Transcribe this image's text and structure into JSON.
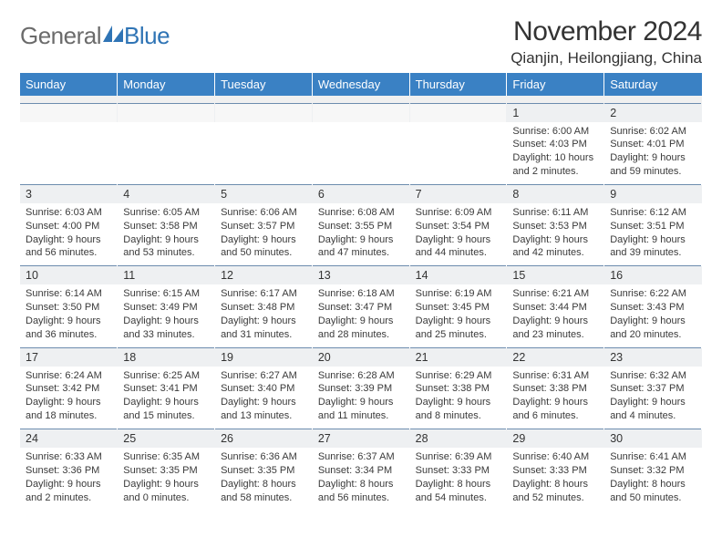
{
  "logo": {
    "text1": "General",
    "text2": "Blue",
    "icon_color": "#2f74b5"
  },
  "header": {
    "title": "November 2024",
    "location": "Qianjin, Heilongjiang, China"
  },
  "colors": {
    "header_bg": "#3a81c4",
    "header_text": "#ffffff",
    "daynum_bg": "#eef0f2",
    "row_border": "#6c8cae",
    "body_text": "#333333"
  },
  "typography": {
    "title_fontsize": 30,
    "location_fontsize": 17,
    "dayhead_fontsize": 13,
    "daynum_fontsize": 12.5,
    "detail_fontsize": 11
  },
  "days_of_week": [
    "Sunday",
    "Monday",
    "Tuesday",
    "Wednesday",
    "Thursday",
    "Friday",
    "Saturday"
  ],
  "weeks": [
    [
      null,
      null,
      null,
      null,
      null,
      {
        "n": "1",
        "sunrise": "Sunrise: 6:00 AM",
        "sunset": "Sunset: 4:03 PM",
        "daylight1": "Daylight: 10 hours",
        "daylight2": "and 2 minutes."
      },
      {
        "n": "2",
        "sunrise": "Sunrise: 6:02 AM",
        "sunset": "Sunset: 4:01 PM",
        "daylight1": "Daylight: 9 hours",
        "daylight2": "and 59 minutes."
      }
    ],
    [
      {
        "n": "3",
        "sunrise": "Sunrise: 6:03 AM",
        "sunset": "Sunset: 4:00 PM",
        "daylight1": "Daylight: 9 hours",
        "daylight2": "and 56 minutes."
      },
      {
        "n": "4",
        "sunrise": "Sunrise: 6:05 AM",
        "sunset": "Sunset: 3:58 PM",
        "daylight1": "Daylight: 9 hours",
        "daylight2": "and 53 minutes."
      },
      {
        "n": "5",
        "sunrise": "Sunrise: 6:06 AM",
        "sunset": "Sunset: 3:57 PM",
        "daylight1": "Daylight: 9 hours",
        "daylight2": "and 50 minutes."
      },
      {
        "n": "6",
        "sunrise": "Sunrise: 6:08 AM",
        "sunset": "Sunset: 3:55 PM",
        "daylight1": "Daylight: 9 hours",
        "daylight2": "and 47 minutes."
      },
      {
        "n": "7",
        "sunrise": "Sunrise: 6:09 AM",
        "sunset": "Sunset: 3:54 PM",
        "daylight1": "Daylight: 9 hours",
        "daylight2": "and 44 minutes."
      },
      {
        "n": "8",
        "sunrise": "Sunrise: 6:11 AM",
        "sunset": "Sunset: 3:53 PM",
        "daylight1": "Daylight: 9 hours",
        "daylight2": "and 42 minutes."
      },
      {
        "n": "9",
        "sunrise": "Sunrise: 6:12 AM",
        "sunset": "Sunset: 3:51 PM",
        "daylight1": "Daylight: 9 hours",
        "daylight2": "and 39 minutes."
      }
    ],
    [
      {
        "n": "10",
        "sunrise": "Sunrise: 6:14 AM",
        "sunset": "Sunset: 3:50 PM",
        "daylight1": "Daylight: 9 hours",
        "daylight2": "and 36 minutes."
      },
      {
        "n": "11",
        "sunrise": "Sunrise: 6:15 AM",
        "sunset": "Sunset: 3:49 PM",
        "daylight1": "Daylight: 9 hours",
        "daylight2": "and 33 minutes."
      },
      {
        "n": "12",
        "sunrise": "Sunrise: 6:17 AM",
        "sunset": "Sunset: 3:48 PM",
        "daylight1": "Daylight: 9 hours",
        "daylight2": "and 31 minutes."
      },
      {
        "n": "13",
        "sunrise": "Sunrise: 6:18 AM",
        "sunset": "Sunset: 3:47 PM",
        "daylight1": "Daylight: 9 hours",
        "daylight2": "and 28 minutes."
      },
      {
        "n": "14",
        "sunrise": "Sunrise: 6:19 AM",
        "sunset": "Sunset: 3:45 PM",
        "daylight1": "Daylight: 9 hours",
        "daylight2": "and 25 minutes."
      },
      {
        "n": "15",
        "sunrise": "Sunrise: 6:21 AM",
        "sunset": "Sunset: 3:44 PM",
        "daylight1": "Daylight: 9 hours",
        "daylight2": "and 23 minutes."
      },
      {
        "n": "16",
        "sunrise": "Sunrise: 6:22 AM",
        "sunset": "Sunset: 3:43 PM",
        "daylight1": "Daylight: 9 hours",
        "daylight2": "and 20 minutes."
      }
    ],
    [
      {
        "n": "17",
        "sunrise": "Sunrise: 6:24 AM",
        "sunset": "Sunset: 3:42 PM",
        "daylight1": "Daylight: 9 hours",
        "daylight2": "and 18 minutes."
      },
      {
        "n": "18",
        "sunrise": "Sunrise: 6:25 AM",
        "sunset": "Sunset: 3:41 PM",
        "daylight1": "Daylight: 9 hours",
        "daylight2": "and 15 minutes."
      },
      {
        "n": "19",
        "sunrise": "Sunrise: 6:27 AM",
        "sunset": "Sunset: 3:40 PM",
        "daylight1": "Daylight: 9 hours",
        "daylight2": "and 13 minutes."
      },
      {
        "n": "20",
        "sunrise": "Sunrise: 6:28 AM",
        "sunset": "Sunset: 3:39 PM",
        "daylight1": "Daylight: 9 hours",
        "daylight2": "and 11 minutes."
      },
      {
        "n": "21",
        "sunrise": "Sunrise: 6:29 AM",
        "sunset": "Sunset: 3:38 PM",
        "daylight1": "Daylight: 9 hours",
        "daylight2": "and 8 minutes."
      },
      {
        "n": "22",
        "sunrise": "Sunrise: 6:31 AM",
        "sunset": "Sunset: 3:38 PM",
        "daylight1": "Daylight: 9 hours",
        "daylight2": "and 6 minutes."
      },
      {
        "n": "23",
        "sunrise": "Sunrise: 6:32 AM",
        "sunset": "Sunset: 3:37 PM",
        "daylight1": "Daylight: 9 hours",
        "daylight2": "and 4 minutes."
      }
    ],
    [
      {
        "n": "24",
        "sunrise": "Sunrise: 6:33 AM",
        "sunset": "Sunset: 3:36 PM",
        "daylight1": "Daylight: 9 hours",
        "daylight2": "and 2 minutes."
      },
      {
        "n": "25",
        "sunrise": "Sunrise: 6:35 AM",
        "sunset": "Sunset: 3:35 PM",
        "daylight1": "Daylight: 9 hours",
        "daylight2": "and 0 minutes."
      },
      {
        "n": "26",
        "sunrise": "Sunrise: 6:36 AM",
        "sunset": "Sunset: 3:35 PM",
        "daylight1": "Daylight: 8 hours",
        "daylight2": "and 58 minutes."
      },
      {
        "n": "27",
        "sunrise": "Sunrise: 6:37 AM",
        "sunset": "Sunset: 3:34 PM",
        "daylight1": "Daylight: 8 hours",
        "daylight2": "and 56 minutes."
      },
      {
        "n": "28",
        "sunrise": "Sunrise: 6:39 AM",
        "sunset": "Sunset: 3:33 PM",
        "daylight1": "Daylight: 8 hours",
        "daylight2": "and 54 minutes."
      },
      {
        "n": "29",
        "sunrise": "Sunrise: 6:40 AM",
        "sunset": "Sunset: 3:33 PM",
        "daylight1": "Daylight: 8 hours",
        "daylight2": "and 52 minutes."
      },
      {
        "n": "30",
        "sunrise": "Sunrise: 6:41 AM",
        "sunset": "Sunset: 3:32 PM",
        "daylight1": "Daylight: 8 hours",
        "daylight2": "and 50 minutes."
      }
    ]
  ]
}
